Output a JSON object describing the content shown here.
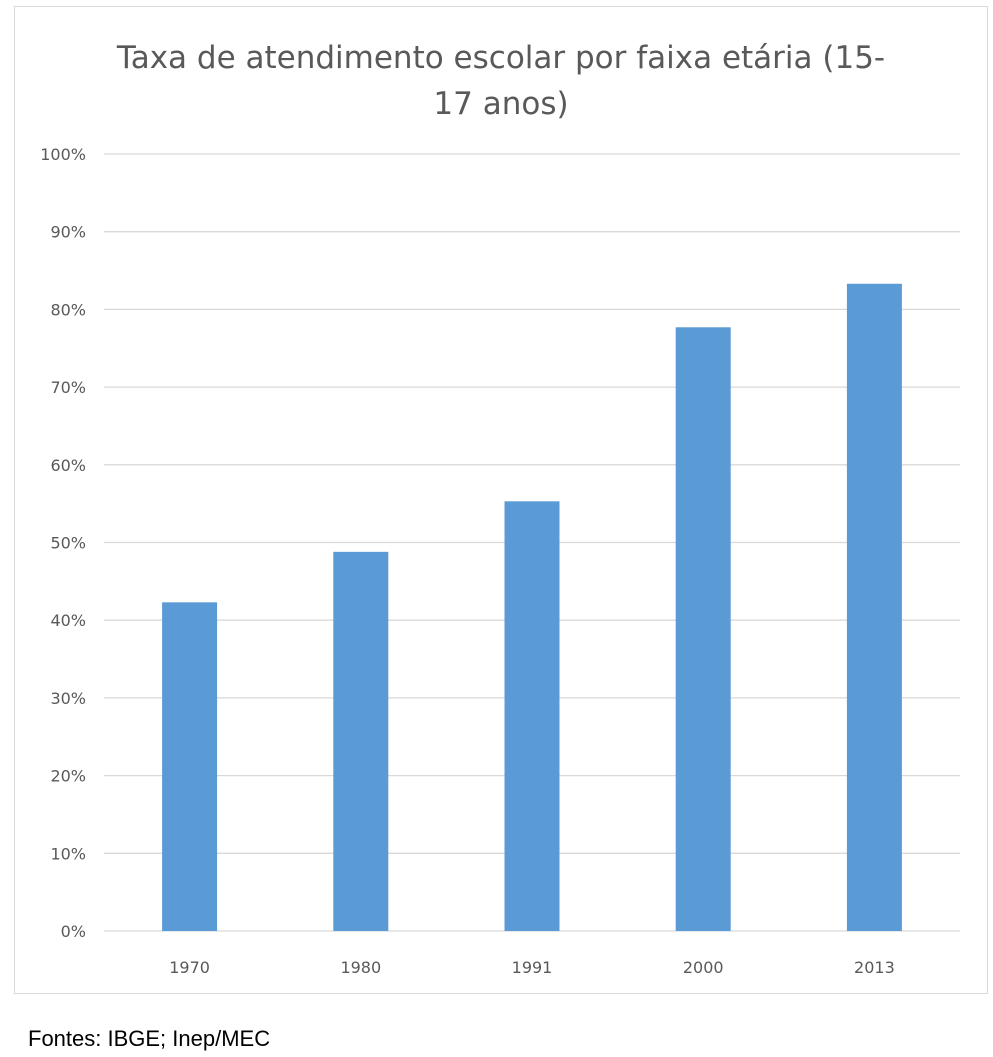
{
  "chart_data": {
    "type": "bar",
    "title": "Taxa de atendimento escolar por faixa etária (15-17 anos)",
    "categories": [
      "1970",
      "1980",
      "1991",
      "2000",
      "2013"
    ],
    "values": [
      42.3,
      48.8,
      55.3,
      77.7,
      83.3
    ],
    "value_unit": "%",
    "xlabel": "",
    "ylabel": "",
    "ylim": [
      0,
      100
    ],
    "yticks": [
      "0%",
      "10%",
      "20%",
      "30%",
      "40%",
      "50%",
      "60%",
      "70%",
      "80%",
      "90%",
      "100%"
    ],
    "ytick_values": [
      0,
      10,
      20,
      30,
      40,
      50,
      60,
      70,
      80,
      90,
      100
    ],
    "grid": "horizontal",
    "legend": "none",
    "bar_color": "#5b9bd5"
  },
  "footer": {
    "source": "Fontes: IBGE; Inep/MEC"
  },
  "colors": {
    "bar": "#5b9bd5",
    "gridline": "#d9d9d9",
    "axis_text": "#595959",
    "title_text": "#595959"
  }
}
